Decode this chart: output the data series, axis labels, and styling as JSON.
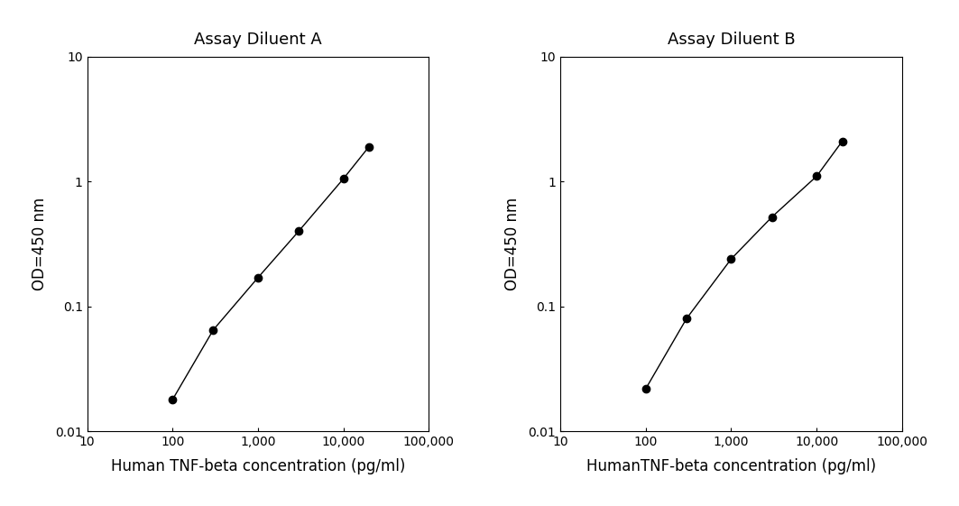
{
  "plot_A": {
    "title": "Assay Diluent A",
    "xlabel": "Human TNF-beta concentration (pg/ml)",
    "ylabel": "OD=450 nm",
    "x": [
      100,
      300,
      1000,
      3000,
      10000,
      20000
    ],
    "y": [
      0.018,
      0.065,
      0.17,
      0.4,
      1.05,
      1.9
    ],
    "xlim": [
      10,
      100000
    ],
    "ylim": [
      0.01,
      10
    ],
    "xticks": [
      10,
      100,
      1000,
      10000,
      100000
    ],
    "xtick_labels": [
      "10",
      "100",
      "1,000",
      "10,000",
      "100,000"
    ],
    "yticks": [
      0.01,
      0.1,
      1,
      10
    ],
    "ytick_labels": [
      "0.01",
      "0.1",
      "1",
      "10"
    ]
  },
  "plot_B": {
    "title": "Assay Diluent B",
    "xlabel": "HumanTNF-beta concentration (pg/ml)",
    "ylabel": "OD=450 nm",
    "x": [
      100,
      300,
      1000,
      3000,
      10000,
      20000
    ],
    "y": [
      0.022,
      0.08,
      0.24,
      0.52,
      1.1,
      2.1
    ],
    "xlim": [
      10,
      100000
    ],
    "ylim": [
      0.01,
      10
    ],
    "xticks": [
      10,
      100,
      1000,
      10000,
      100000
    ],
    "xtick_labels": [
      "10",
      "100",
      "1,000",
      "10,000",
      "100,000"
    ],
    "yticks": [
      0.01,
      0.1,
      1,
      10
    ],
    "ytick_labels": [
      "0.01",
      "0.1",
      "1",
      "10"
    ]
  },
  "line_color": "#000000",
  "marker_color": "#000000",
  "marker_size": 6,
  "line_width": 1.0,
  "title_fontsize": 13,
  "label_fontsize": 12,
  "tick_fontsize": 10,
  "background_color": "#ffffff"
}
